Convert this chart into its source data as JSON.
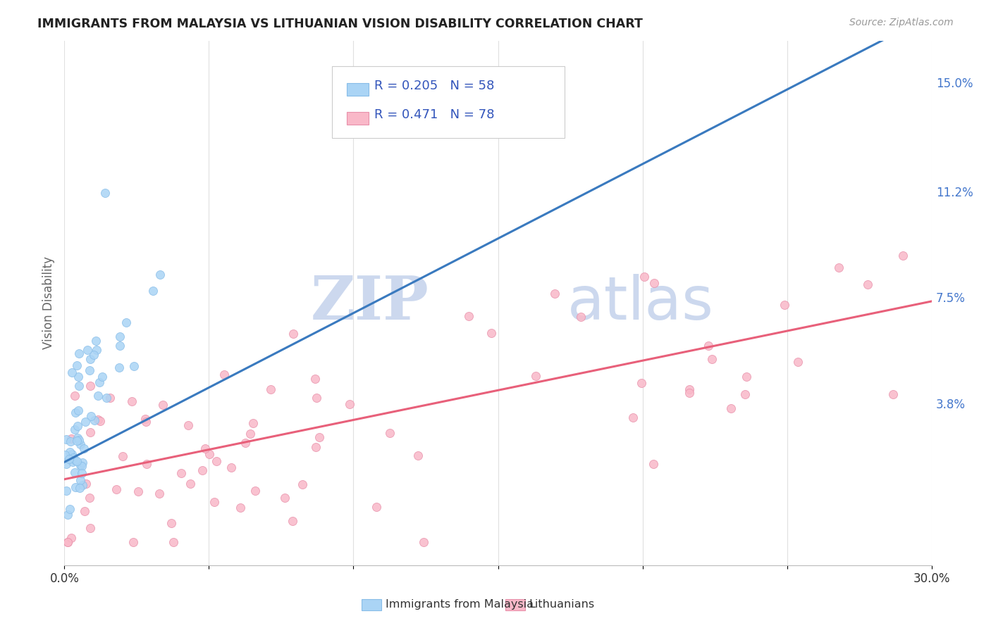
{
  "title": "IMMIGRANTS FROM MALAYSIA VS LITHUANIAN VISION DISABILITY CORRELATION CHART",
  "source": "Source: ZipAtlas.com",
  "ylabel": "Vision Disability",
  "xlim": [
    0.0,
    0.3
  ],
  "ylim": [
    -0.018,
    0.165
  ],
  "ytick_positions": [
    0.038,
    0.075,
    0.112,
    0.15
  ],
  "ytick_labels": [
    "3.8%",
    "7.5%",
    "11.2%",
    "15.0%"
  ],
  "series1_color": "#aad4f5",
  "series1_edge": "#88bde8",
  "series1_label": "Immigrants from Malaysia",
  "series1_R": 0.205,
  "series1_N": 58,
  "series1_line_color": "#3a7abf",
  "series2_color": "#f9b8c8",
  "series2_edge": "#e890aa",
  "series2_label": "Lithuanians",
  "series2_R": 0.471,
  "series2_N": 78,
  "series2_line_color": "#e8607a",
  "series1_dashed_color": "#88bbdd",
  "legend_text_color": "#3355bb",
  "watermark_color": "#ccd8ee",
  "background_color": "#ffffff",
  "grid_color": "#dddddd",
  "title_color": "#222222",
  "right_label_color": "#4477cc"
}
